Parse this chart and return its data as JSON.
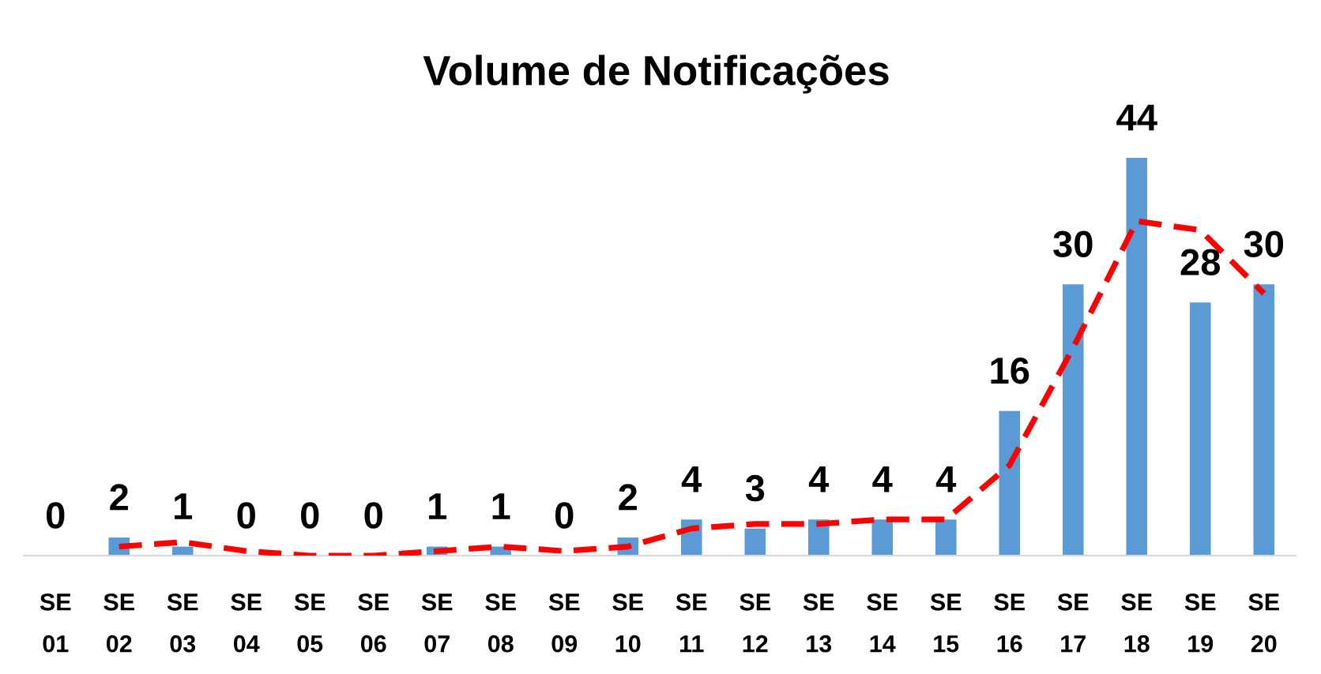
{
  "chart_data": {
    "type": "bar",
    "title": "Volume de Notificações",
    "categories": [
      "SE\n01",
      "SE\n02",
      "SE\n03",
      "SE\n04",
      "SE\n05",
      "SE\n06",
      "SE\n07",
      "SE\n08",
      "SE\n09",
      "SE\n10",
      "SE\n11",
      "SE\n12",
      "SE\n13",
      "SE\n14",
      "SE\n15",
      "SE\n16",
      "SE\n17",
      "SE\n18",
      "SE\n19",
      "SE\n20"
    ],
    "series": [
      {
        "color": "#5b9bd5",
        "data_labels": true,
        "values": [
          0,
          2,
          1,
          0,
          0,
          0,
          1,
          1,
          0,
          2,
          4,
          3,
          4,
          4,
          4,
          16,
          30,
          44,
          28,
          30
        ]
      },
      {
        "type": "line",
        "color": "#ff0000",
        "line_style": "dashed",
        "values": [
          null,
          1,
          1.5,
          0.5,
          0,
          0,
          0.5,
          1,
          0.5,
          1,
          3,
          3.5,
          3.5,
          4,
          4,
          10,
          23,
          37,
          36,
          29
        ]
      }
    ],
    "tick_labels": "x"
  }
}
